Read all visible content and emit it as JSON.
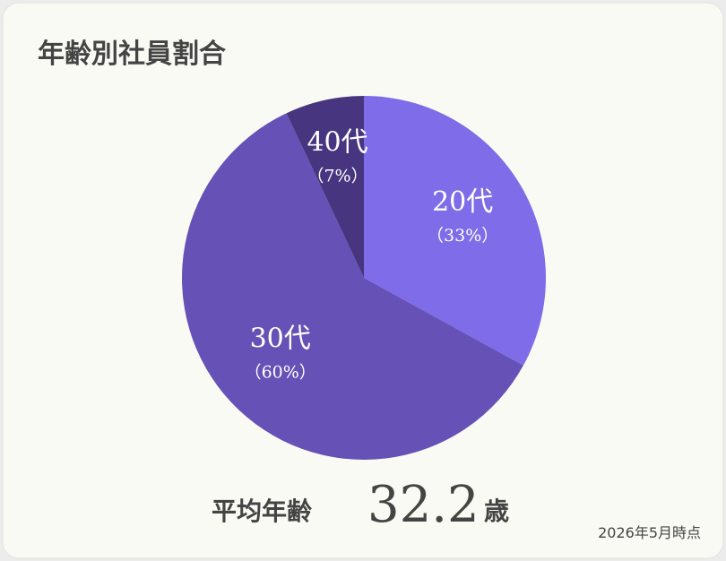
{
  "chart_data": {
    "type": "pie",
    "title": "年齢別社員割合",
    "categories": [
      "20代",
      "30代",
      "40代"
    ],
    "values": [
      33,
      60,
      7
    ],
    "value_labels": [
      "（33%）",
      "（60%）",
      "（7%）"
    ],
    "colors": [
      "#7f6ce9",
      "#6651b6",
      "#47357f"
    ],
    "summary": {
      "label": "平均年齢",
      "value": "32.2",
      "unit": "歳"
    },
    "note": "2026年5月時点"
  }
}
